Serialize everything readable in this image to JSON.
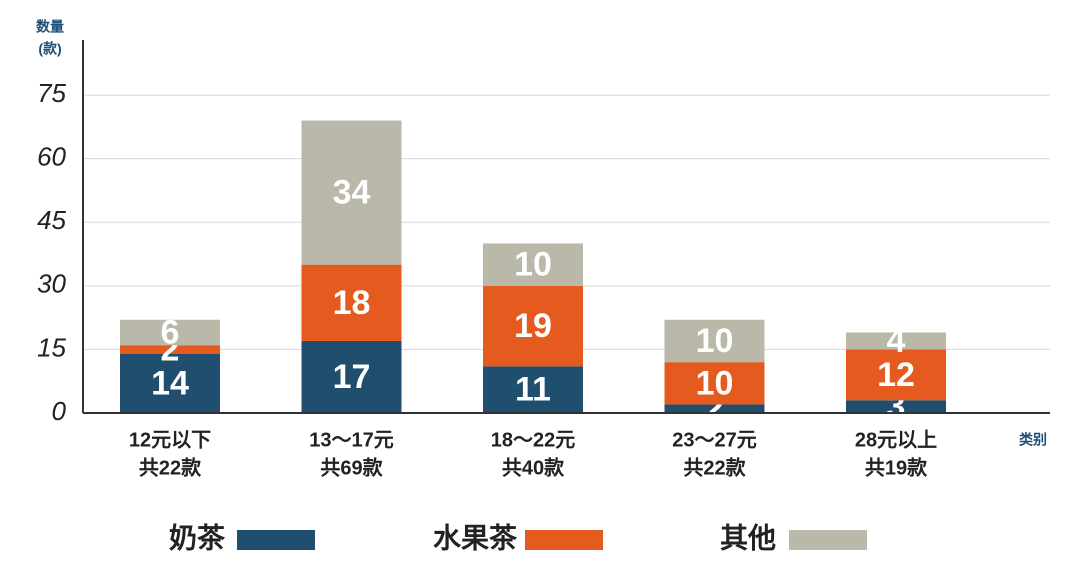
{
  "chart_data": {
    "type": "stacked_bar",
    "y_label": [
      "数量",
      "(款)"
    ],
    "x_label": "类别",
    "categories": [
      [
        "12元以下",
        "共22款"
      ],
      [
        "13～17元",
        "共69款"
      ],
      [
        "18～22元",
        "共40款"
      ],
      [
        "23～27元",
        "共22款"
      ],
      [
        "28元以上",
        "共19款"
      ]
    ],
    "series": [
      {
        "name": "奶茶",
        "color": "#1f4e6e",
        "values": [
          14,
          17,
          11,
          2,
          3
        ]
      },
      {
        "name": "水果茶",
        "color": "#e55a1f",
        "values": [
          2,
          18,
          19,
          10,
          12
        ]
      },
      {
        "name": "其他",
        "color": "#b9b8a9",
        "values": [
          6,
          34,
          10,
          10,
          4
        ]
      }
    ],
    "ylim": [
      0,
      88
    ],
    "yticks": [
      0,
      15,
      30,
      45,
      60,
      75
    ],
    "grid": true
  }
}
